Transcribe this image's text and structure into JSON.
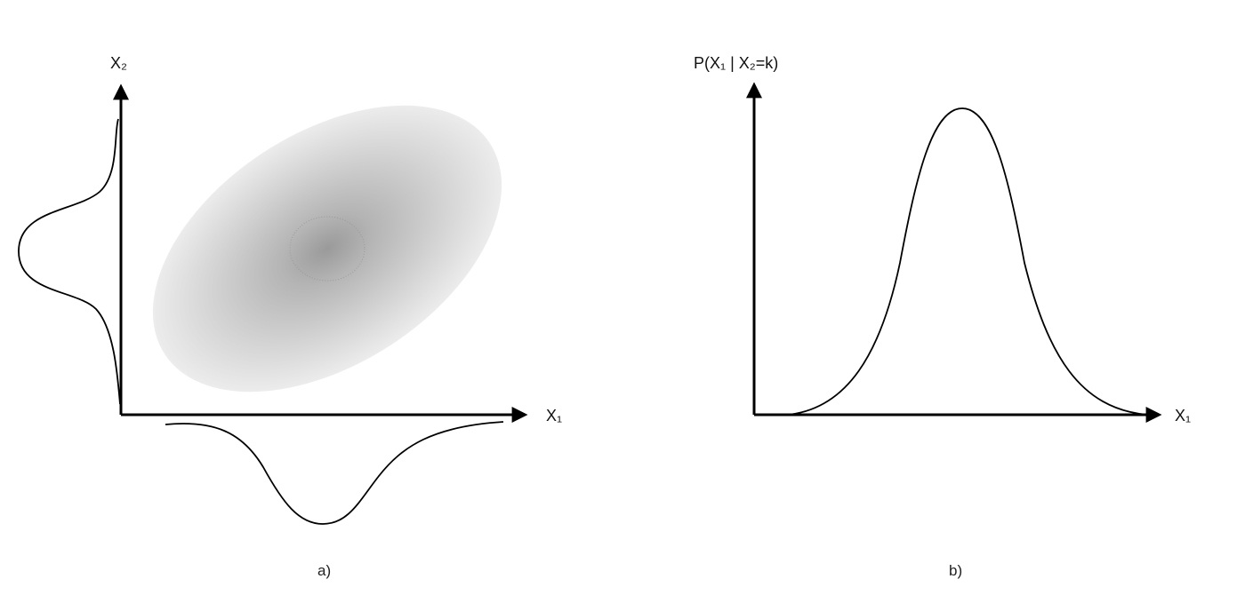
{
  "panel_a": {
    "x_axis_label": "X₁",
    "y_axis_label": "X₂",
    "caption": "a)"
  },
  "panel_b": {
    "x_axis_label": "X₁",
    "y_axis_label": "P(X₁ | X₂=k)",
    "caption": "b)"
  },
  "colors": {
    "ink": "#000000",
    "blob_center": "#9a9a9a",
    "blob_edge": "#e6e6e6"
  }
}
